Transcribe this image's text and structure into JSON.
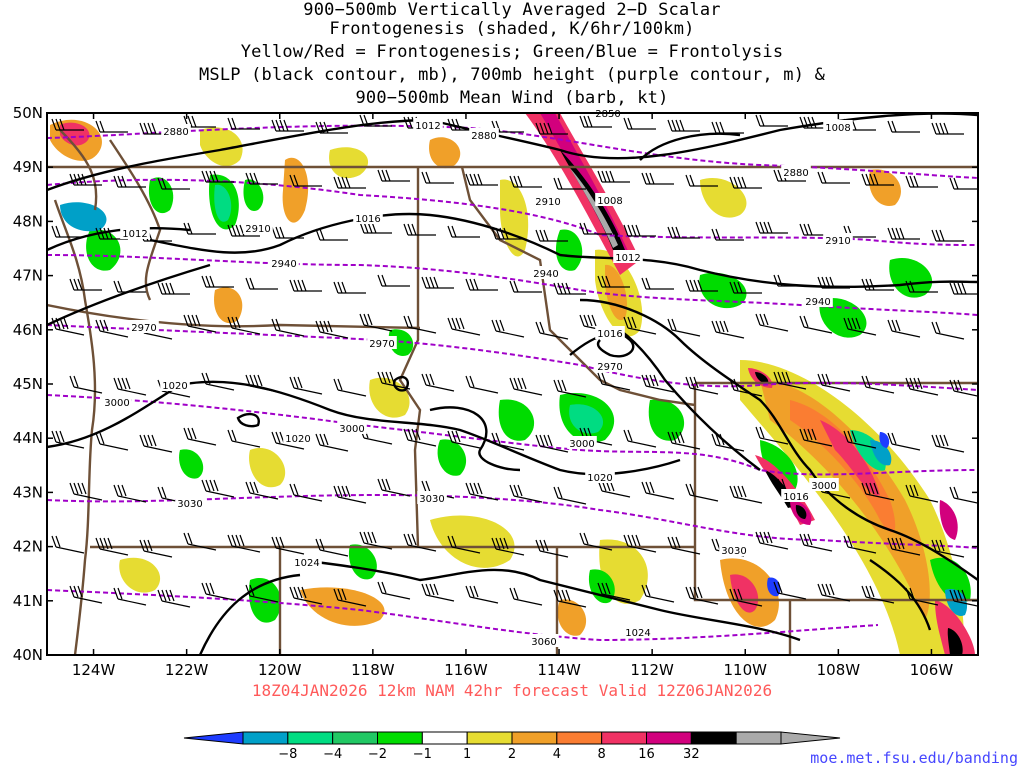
{
  "title_lines": [
    "900−500mb Vertically Averaged 2−D Scalar",
    "Frontogenesis (shaded, K/6hr/100km)",
    "Yellow/Red = Frontogenesis;  Green/Blue = Frontolysis",
    "MSLP (black contour, mb), 700mb height (purple contour, m) &",
    "900−500mb Mean Wind (barb, kt)"
  ],
  "subtitle": "18Z04JAN2026  12km NAM 42hr forecast Valid 12Z06JAN2026",
  "credit": "moe.met.fsu.edu/banding",
  "map": {
    "lat_labels": [
      "50N",
      "49N",
      "48N",
      "47N",
      "46N",
      "45N",
      "44N",
      "43N",
      "42N",
      "41N",
      "40N"
    ],
    "lon_labels": [
      "124W",
      "122W",
      "120W",
      "118W",
      "116W",
      "114W",
      "112W",
      "110W",
      "108W",
      "106W"
    ],
    "lat_values": [
      50,
      49,
      48,
      47,
      46,
      45,
      44,
      43,
      42,
      41,
      40
    ],
    "lon_values": [
      -124,
      -122,
      -120,
      -118,
      -116,
      -114,
      -112,
      -110,
      -108,
      -106
    ],
    "extent": {
      "lon_min": -125.0,
      "lon_max": -105.0,
      "lat_min": 40.0,
      "lat_max": 50.0
    },
    "mslp_labels": [
      "1012",
      "1008",
      "1016",
      "1012",
      "1012",
      "1016",
      "1020",
      "1020",
      "1020",
      "1016",
      "1024",
      "1024",
      "1008"
    ],
    "height_labels": [
      "2880",
      "2880",
      "2850",
      "2880",
      "2910",
      "2910",
      "2940",
      "2910",
      "2940",
      "2970",
      "2970",
      "2970",
      "3000",
      "3000",
      "3000",
      "3030",
      "3030",
      "3030",
      "3060",
      "2940",
      "3000"
    ]
  },
  "colorbar": {
    "labels": [
      "−8",
      "−4",
      "−2",
      "−1",
      "1",
      "2",
      "4",
      "8",
      "16",
      "32"
    ],
    "colors": [
      "#1e3cff",
      "#00a0c8",
      "#00dc82",
      "#21c864",
      "#00dc00",
      "#ffffff",
      "#e6dc32",
      "#f0a029",
      "#fa7d32",
      "#f03264",
      "#d2007d",
      "#000000",
      "#aaaaaa"
    ]
  }
}
